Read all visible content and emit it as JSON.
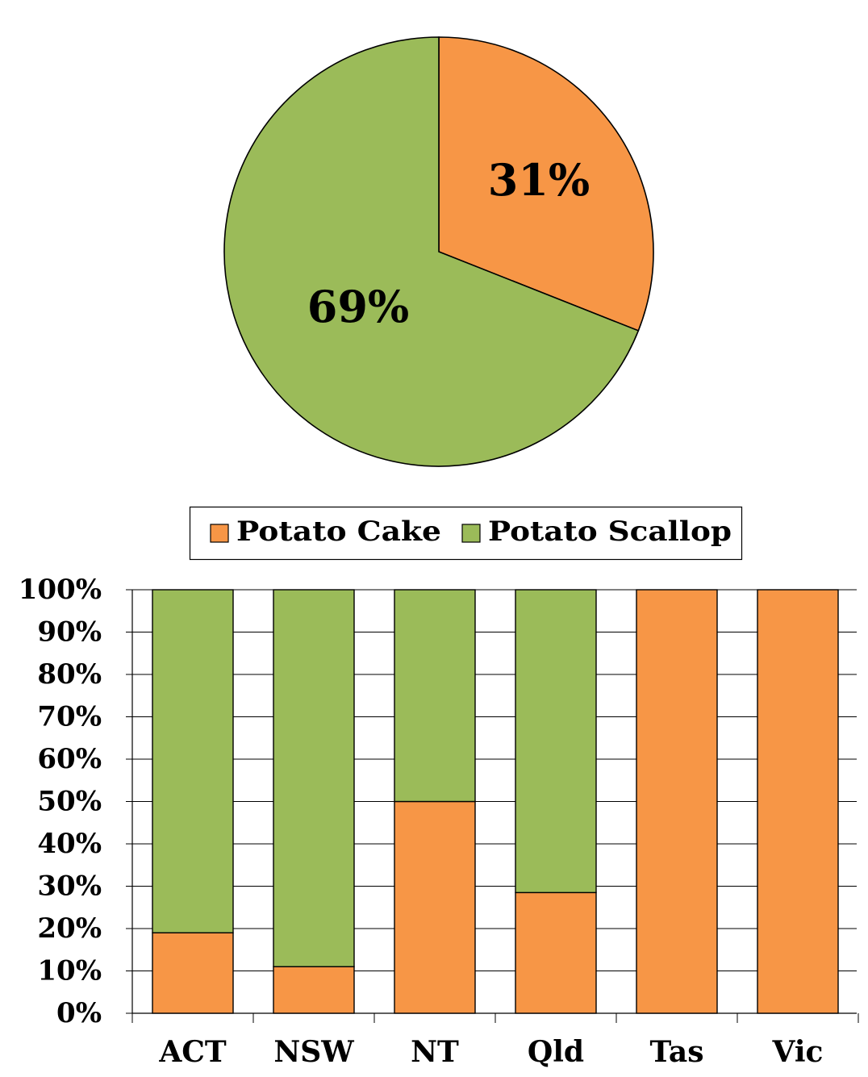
{
  "chart_data": [
    {
      "type": "pie",
      "categories": [
        "Potato Cake",
        "Potato Scallop"
      ],
      "values": [
        31,
        69
      ],
      "labels": [
        "31%",
        "69%"
      ],
      "title": "",
      "colors": [
        "#F79646",
        "#9BBB59"
      ]
    },
    {
      "type": "bar",
      "stacked": "percent",
      "categories": [
        "ACT",
        "NSW",
        "NT",
        "Qld",
        "Tas",
        "Vic"
      ],
      "series": [
        {
          "name": "Potato Cake",
          "color": "#F79646",
          "values": [
            19,
            11,
            50,
            28.5,
            100,
            100
          ]
        },
        {
          "name": "Potato Scallop",
          "color": "#9BBB59",
          "values": [
            81,
            89,
            50,
            71.5,
            0,
            0
          ]
        }
      ],
      "ylim": [
        0,
        100
      ],
      "y_ticks": [
        "0%",
        "10%",
        "20%",
        "30%",
        "40%",
        "50%",
        "60%",
        "70%",
        "80%",
        "90%",
        "100%"
      ],
      "grid": true,
      "legend": "top",
      "title": "",
      "xlabel": "",
      "ylabel": ""
    }
  ]
}
